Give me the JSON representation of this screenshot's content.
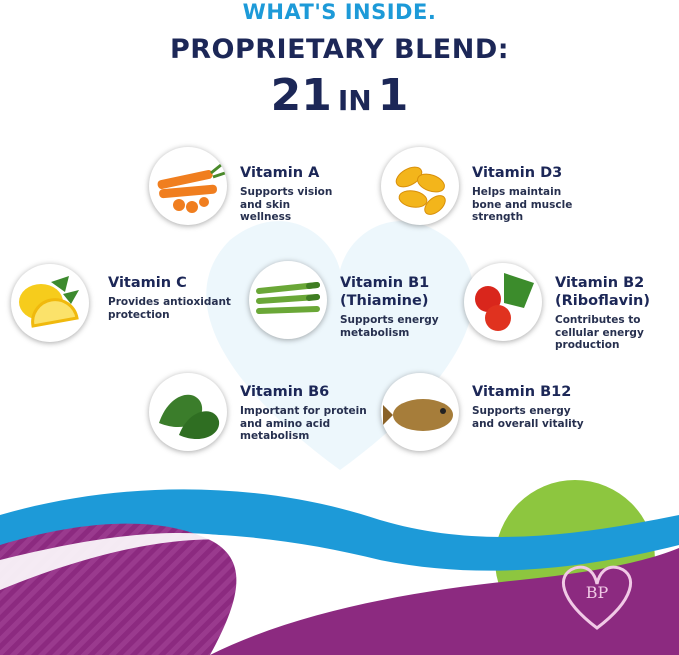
{
  "header": {
    "eyebrow": "WHAT'S INSIDE.",
    "title": "PROPRIETARY BLEND:",
    "count": [
      "21",
      "IN",
      "1"
    ]
  },
  "items": [
    {
      "name": "Vitamin A",
      "description": "Supports vision and skin wellness"
    },
    {
      "name": "Vitamin D3",
      "description": "Helps maintain bone and muscle strength"
    },
    {
      "name": "Vitamin C",
      "description": "Provides antioxidant protection"
    },
    {
      "name": "Vitamin B1 (Thiamine)",
      "description": "Supports energy metabolism"
    },
    {
      "name": "Vitamin B2 (Riboflavin)",
      "description": "Contributes to cellular energy production"
    },
    {
      "name": "Vitamin B6",
      "description": "Important for protein and amino acid metabolism"
    },
    {
      "name": "Vitamin B12",
      "description": "Supports energy and overall vitality"
    }
  ]
}
